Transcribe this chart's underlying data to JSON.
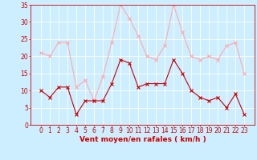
{
  "x": [
    0,
    1,
    2,
    3,
    4,
    5,
    6,
    7,
    8,
    9,
    10,
    11,
    12,
    13,
    14,
    15,
    16,
    17,
    18,
    19,
    20,
    21,
    22,
    23
  ],
  "wind_mean": [
    10,
    8,
    11,
    11,
    3,
    7,
    7,
    7,
    12,
    19,
    18,
    11,
    12,
    12,
    12,
    19,
    15,
    10,
    8,
    7,
    8,
    5,
    9,
    3
  ],
  "wind_gust": [
    21,
    20,
    24,
    24,
    11,
    13,
    7,
    14,
    24,
    35,
    31,
    26,
    20,
    19,
    23,
    35,
    27,
    20,
    19,
    20,
    19,
    23,
    24,
    15
  ],
  "mean_color": "#cc0000",
  "gust_color": "#ffaaaa",
  "background_color": "#cceeff",
  "grid_color": "#ffffff",
  "text_color": "#cc0000",
  "xlabel": "Vent moyen/en rafales ( km/h )",
  "ylim": [
    0,
    35
  ],
  "yticks": [
    0,
    5,
    10,
    15,
    20,
    25,
    30,
    35
  ],
  "tick_fontsize": 5.5,
  "xlabel_fontsize": 6.5
}
